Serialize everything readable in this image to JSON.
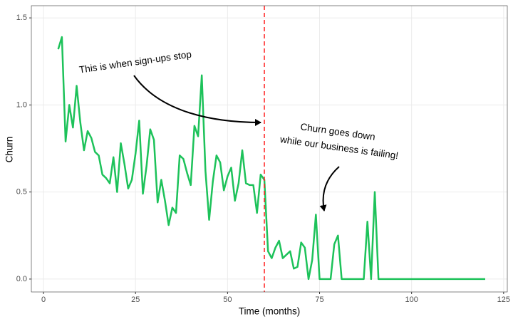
{
  "chart_data": {
    "type": "line",
    "x_label": "Time (months)",
    "y_label": "Churn",
    "x": [
      4,
      5,
      6,
      7,
      8,
      9,
      10,
      11,
      12,
      13,
      14,
      15,
      16,
      17,
      18,
      19,
      20,
      21,
      22,
      23,
      24,
      25,
      26,
      27,
      28,
      29,
      30,
      31,
      32,
      33,
      34,
      35,
      36,
      37,
      38,
      39,
      40,
      41,
      42,
      43,
      44,
      45,
      46,
      47,
      48,
      49,
      50,
      51,
      52,
      53,
      54,
      55,
      56,
      57,
      58,
      59,
      60,
      61,
      62,
      63,
      64,
      65,
      66,
      67,
      68,
      69,
      70,
      71,
      72,
      73,
      74,
      75,
      76,
      77,
      78,
      79,
      80,
      81,
      82,
      83,
      84,
      85,
      86,
      87,
      88,
      89,
      90,
      91,
      92,
      93,
      94,
      95,
      96,
      97,
      98,
      99,
      100,
      101,
      102,
      103,
      104,
      105,
      106,
      107,
      108,
      109,
      110,
      111,
      112,
      113,
      114,
      115,
      116,
      117,
      118,
      119,
      120
    ],
    "series": [
      {
        "color": "#1dc25a",
        "values": [
          1.32,
          1.39,
          0.79,
          1.0,
          0.87,
          1.11,
          0.9,
          0.74,
          0.85,
          0.81,
          0.73,
          0.71,
          0.6,
          0.58,
          0.55,
          0.7,
          0.5,
          0.78,
          0.66,
          0.52,
          0.57,
          0.72,
          0.91,
          0.49,
          0.65,
          0.86,
          0.8,
          0.44,
          0.57,
          0.45,
          0.31,
          0.41,
          0.38,
          0.71,
          0.69,
          0.61,
          0.54,
          0.88,
          0.82,
          1.17,
          0.62,
          0.34,
          0.56,
          0.71,
          0.67,
          0.51,
          0.59,
          0.64,
          0.45,
          0.55,
          0.74,
          0.55,
          0.54,
          0.54,
          0.38,
          0.6,
          0.57,
          0.16,
          0.12,
          0.18,
          0.22,
          0.12,
          0.14,
          0.16,
          0.06,
          0.07,
          0.21,
          0.18,
          0,
          0.11,
          0.37,
          0,
          0,
          0,
          0,
          0.2,
          0.25,
          0,
          0,
          0,
          0,
          0,
          0,
          0,
          0.33,
          0,
          0.5,
          0,
          0,
          0,
          0,
          0,
          0,
          0,
          0,
          0,
          0,
          0,
          0,
          0,
          0,
          0,
          0,
          0,
          0,
          0,
          0,
          0,
          0,
          0,
          0,
          0,
          0,
          0,
          0,
          0,
          0
        ]
      }
    ],
    "vline": {
      "x": 60,
      "color": "#ff2020"
    },
    "annotations": [
      "This is when sign-ups stop",
      "Churn goes down",
      "while our business is failing!"
    ],
    "xlim": [
      -3.3,
      126
    ],
    "ylim": [
      -0.074,
      1.57
    ],
    "xticks": [
      0,
      25,
      50,
      75,
      100,
      125
    ],
    "yticks": [
      {
        "value": 0,
        "label": "0.0"
      },
      0.5,
      {
        "value": 1,
        "label": "1.0"
      },
      1.5
    ],
    "grid": true
  }
}
